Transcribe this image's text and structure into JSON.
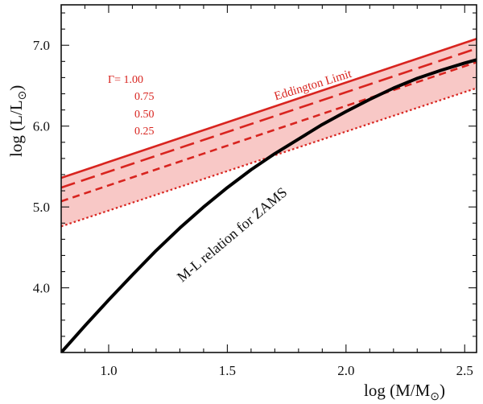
{
  "chart_data": {
    "type": "line",
    "xlabel": "log (M/M",
    "ylabel": "log (L/L",
    "sun_symbol": "⊙",
    "xlim": [
      0.8,
      2.55
    ],
    "ylim": [
      3.2,
      7.5
    ],
    "x_ticks": [
      {
        "value": 1.0,
        "label": "1.0"
      },
      {
        "value": 1.5,
        "label": "1.5"
      },
      {
        "value": 2.0,
        "label": "2.0"
      },
      {
        "value": 2.5,
        "label": "2.5"
      }
    ],
    "y_ticks": [
      {
        "value": 4.0,
        "label": "4.0"
      },
      {
        "value": 5.0,
        "label": "5.0"
      },
      {
        "value": 6.0,
        "label": "6.0"
      },
      {
        "value": 7.0,
        "label": "7.0"
      }
    ],
    "x_minor_step": 0.1,
    "y_minor_step": 0.2,
    "legend": {
      "labels": [
        "Γ= 1.00",
        "0.75",
        "0.50",
        "0.25"
      ],
      "color": "#d8241f"
    },
    "series": [
      {
        "name": "Γ= 1.00",
        "style": "solid",
        "color": "#d8241f",
        "x": [
          0.8,
          2.55
        ],
        "y": [
          5.36,
          7.08
        ]
      },
      {
        "name": "0.75",
        "style": "long-dash",
        "color": "#d8241f",
        "x": [
          0.8,
          2.55
        ],
        "y": [
          5.24,
          6.96
        ]
      },
      {
        "name": "0.50",
        "style": "short-dash",
        "color": "#d8241f",
        "x": [
          0.8,
          2.55
        ],
        "y": [
          5.07,
          6.79
        ]
      },
      {
        "name": "0.25",
        "style": "dotted",
        "color": "#d8241f",
        "x": [
          0.8,
          2.55
        ],
        "y": [
          4.76,
          6.47
        ]
      },
      {
        "name": "M-L relation for ZAMS",
        "style": "solid",
        "color": "#000000",
        "x": [
          0.8,
          0.9,
          1.0,
          1.1,
          1.2,
          1.3,
          1.4,
          1.5,
          1.6,
          1.7,
          1.8,
          1.9,
          2.0,
          2.1,
          2.2,
          2.3,
          2.4,
          2.5,
          2.55
        ],
        "y": [
          3.2,
          3.53,
          3.85,
          4.16,
          4.46,
          4.74,
          5.0,
          5.24,
          5.46,
          5.66,
          5.84,
          6.02,
          6.18,
          6.33,
          6.47,
          6.59,
          6.69,
          6.78,
          6.82
        ]
      }
    ],
    "shaded_band": {
      "between": [
        "Γ= 1.00",
        "0.25"
      ],
      "color": "#f8c8c6"
    },
    "annotations": [
      {
        "text": "Eddington Limit",
        "color": "#d8241f",
        "x": 1.85,
        "y": 6.55,
        "rotation": -17
      },
      {
        "text": "M-L relation for ZAMS",
        "color": "#000000",
        "x": 1.4,
        "y": 4.6,
        "rotation": -40
      }
    ]
  }
}
